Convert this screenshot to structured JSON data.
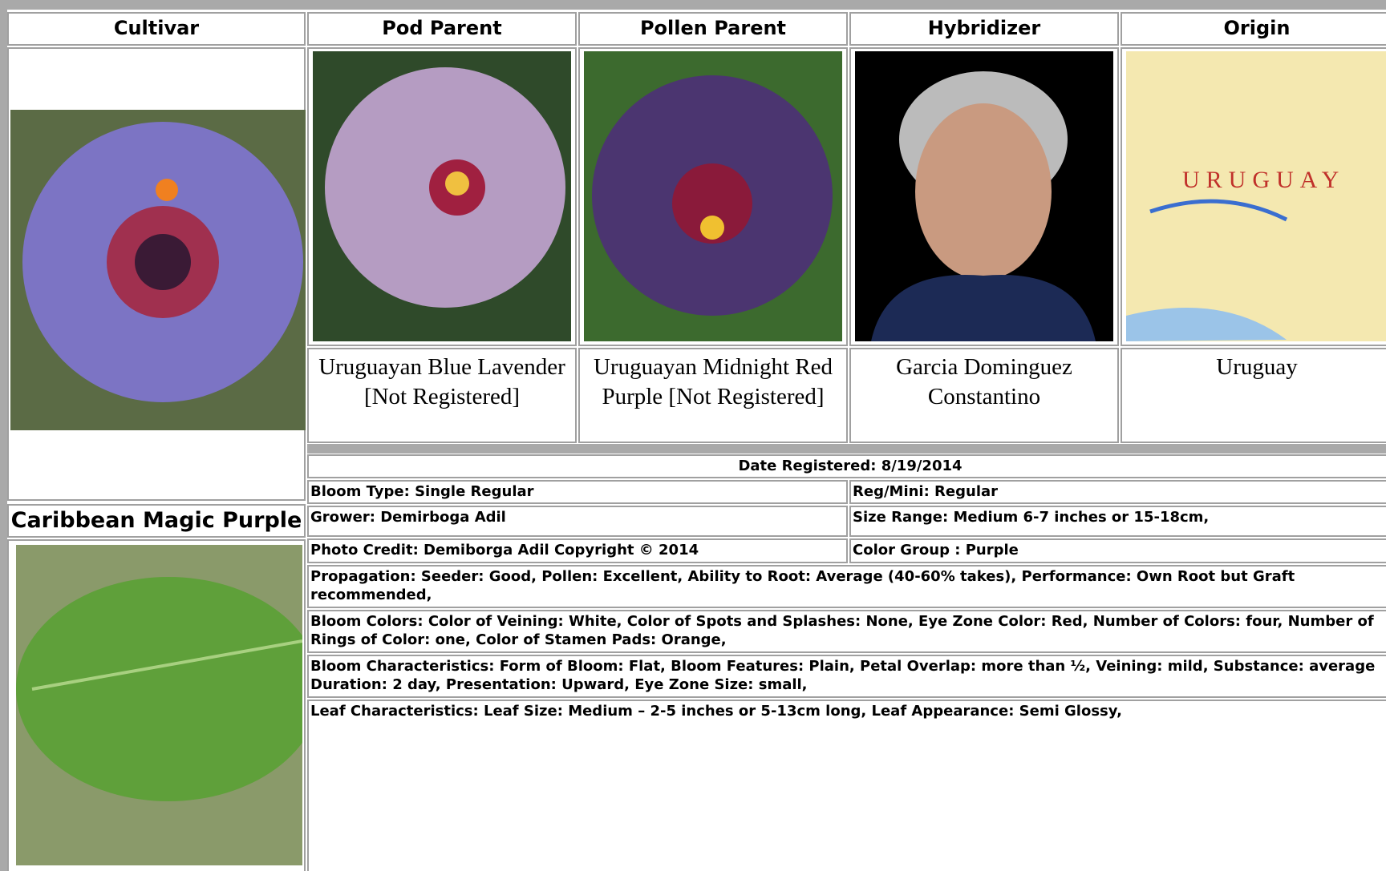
{
  "header": {
    "columns": [
      "Cultivar",
      "Pod Parent",
      "Pollen Parent",
      "Hybridizer",
      "Origin"
    ]
  },
  "cultivar": {
    "name": "Caribbean Magic Purple"
  },
  "parents": {
    "pod": "Uruguayan Blue Lavender [Not Registered]",
    "pollen": "Uruguayan Midnight Red Purple [Not Registered]",
    "hybridizer": "Garcia Dominguez Constantino",
    "origin": "Uruguay"
  },
  "details": {
    "date_registered": "Date Registered:  8/19/2014",
    "bloom_type": "Bloom Type: Single Regular",
    "reg_mini": "Reg/Mini: Regular",
    "grower": "Grower: Demirboga Adil",
    "size_range": "Size Range: Medium 6-7 inches or 15-18cm,",
    "photo_credit": "Photo Credit: Demiborga Adil Copyright © 2014",
    "color_group": "Color Group : Purple",
    "propagation": "Propagation: Seeder: Good, Pollen: Excellent, Ability to Root: Average (40-60% takes), Performance: Own Root but Graft recommended,",
    "bloom_colors": "Bloom Colors: Color of Veining: White, Color of Spots and Splashes: None, Eye Zone Color: Red, Number of Colors: four, Number of Rings of Color: one, Color of Stamen Pads: Orange,",
    "bloom_characteristics": "Bloom Characteristics: Form of Bloom: Flat, Bloom Features: Plain, Petal Overlap: more than ½, Veining: mild, Substance: average Duration: 2 day, Presentation: Upward, Eye Zone Size: small,",
    "leaf_characteristics": "Leaf Characteristics: Leaf Size: Medium – 2-5 inches or 5-13cm long, Leaf Appearance: Semi Glossy,"
  }
}
